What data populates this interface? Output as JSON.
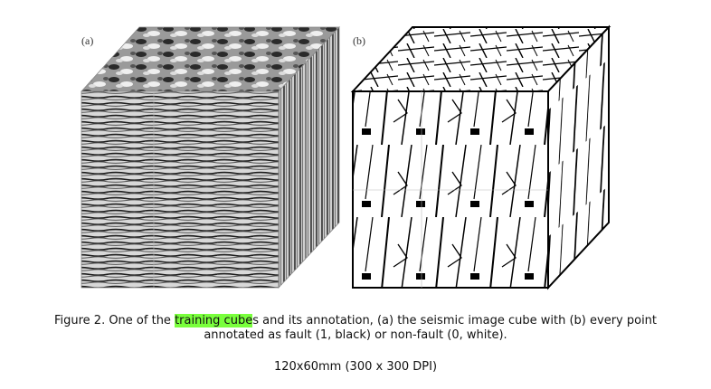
{
  "figure": {
    "panel_a_label": "(a)",
    "panel_b_label": "(b)"
  },
  "caption": {
    "prefix": "Figure 2. One of the ",
    "highlight_first": "training cube",
    "highlight_second": "s",
    "line1_rest": " and its annotation, (a) the seismic image cube with (b) every point",
    "line2": "annotated as fault (1, black) or non-fault (0, white)."
  },
  "size_note": "120x60mm (300 x 300 DPI)",
  "colors": {
    "highlight": "#79ff3c"
  }
}
